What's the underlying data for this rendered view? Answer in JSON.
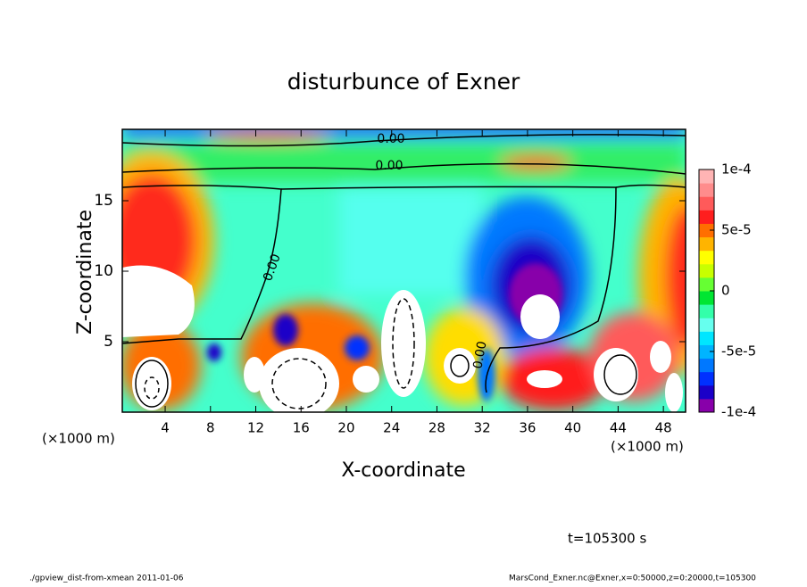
{
  "chart_data": {
    "type": "contour",
    "title": "disturbunce of Exner",
    "xlabel": "X-coordinate",
    "ylabel": "Z-coordinate",
    "xunit": "(×1000 m)",
    "yunit": "(×1000 m)",
    "xlim": [
      0,
      50
    ],
    "xticks": [
      4,
      8,
      12,
      16,
      20,
      24,
      28,
      32,
      36,
      40,
      44,
      48
    ],
    "ylim": [
      0,
      20
    ],
    "yticks": [
      5,
      10,
      15
    ],
    "colorbar": {
      "lim": [
        -0.0001,
        0.0001
      ],
      "ticks": [
        {
          "value": 0.0001,
          "label": "1e-4"
        },
        {
          "value": 5e-05,
          "label": "5e-5"
        },
        0,
        {
          "value": -5e-05,
          "label": "-5e-5"
        },
        {
          "value": -0.0001,
          "label": "-1e-4"
        }
      ],
      "colors": [
        "#8800aa",
        "#1a00c8",
        "#0030ff",
        "#0078ff",
        "#00b4ff",
        "#00e6ff",
        "#66ffee",
        "#33ffaa",
        "#00e632",
        "#66ff33",
        "#c8ff00",
        "#ffff00",
        "#ffb400",
        "#ff6e00",
        "#ff1e1e",
        "#ff5a5a",
        "#ff8c8c",
        "#ffb4b4"
      ]
    },
    "contour_labels": [
      "0.00",
      "0.00",
      "0.00",
      "0.00"
    ],
    "time_label": "t=105300 s",
    "footer_left": "./gpview_dist-from-xmean  2011-01-06",
    "footer_right": "MarsCond_Exner.nc@Exner,x=0:50000,z=0:20000,t=105300"
  }
}
